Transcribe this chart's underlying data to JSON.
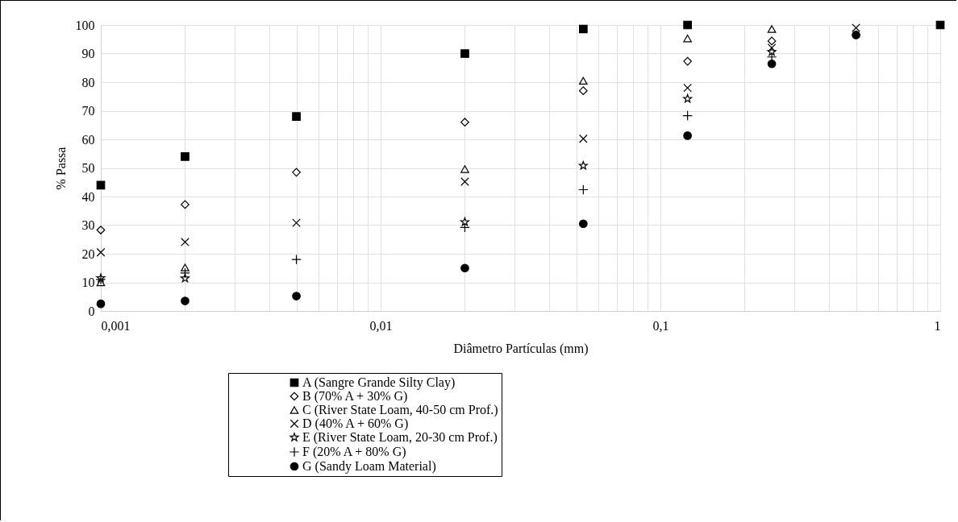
{
  "chart_data": {
    "type": "scatter",
    "xlabel": "Diâmetro  Partículas  (mm)",
    "ylabel": "% Passa",
    "log": "x",
    "grid": true,
    "legend": "bottom",
    "x": [
      0.001,
      0.002,
      0.005,
      0.02,
      0.053,
      0.125,
      0.25,
      0.5,
      1
    ],
    "xlim": [
      0.001,
      1
    ],
    "xticks": [
      {
        "value": 0.001,
        "label": "0,001"
      },
      {
        "value": 0.002,
        "label": null
      },
      {
        "value": 0.003,
        "label": null
      },
      {
        "value": 0.004,
        "label": null
      },
      {
        "value": 0.005,
        "label": null
      },
      {
        "value": 0.006,
        "label": null
      },
      {
        "value": 0.007,
        "label": null
      },
      {
        "value": 0.008,
        "label": null
      },
      {
        "value": 0.009,
        "label": null
      },
      {
        "value": 0.01,
        "label": "0,01"
      },
      {
        "value": 0.02,
        "label": null
      },
      {
        "value": 0.03,
        "label": null
      },
      {
        "value": 0.04,
        "label": null
      },
      {
        "value": 0.05,
        "label": null
      },
      {
        "value": 0.06,
        "label": null
      },
      {
        "value": 0.07,
        "label": null
      },
      {
        "value": 0.08,
        "label": null
      },
      {
        "value": 0.09,
        "label": null
      },
      {
        "value": 0.1,
        "label": "0,1"
      },
      {
        "value": 0.2,
        "label": null
      },
      {
        "value": 0.3,
        "label": null
      },
      {
        "value": 0.4,
        "label": null
      },
      {
        "value": 0.5,
        "label": null
      },
      {
        "value": 0.6,
        "label": null
      },
      {
        "value": 0.7,
        "label": null
      },
      {
        "value": 0.8,
        "label": null
      },
      {
        "value": 0.9,
        "label": null
      },
      1
    ],
    "ylim": [
      0,
      100
    ],
    "yticks": [
      0,
      10,
      20,
      30,
      40,
      50,
      60,
      70,
      80,
      90,
      100
    ],
    "series": [
      {
        "name": "A (Sangre Grande Silty Clay)",
        "color": "#000000",
        "marker": "square",
        "values": [
          44,
          54,
          68,
          90,
          98.6,
          100,
          null,
          null,
          100
        ]
      },
      {
        "name": "B (70% A + 30% G)",
        "color": "#000000",
        "marker": "diamond",
        "values": [
          28.3,
          37.2,
          48.5,
          66,
          77,
          87.3,
          94.4,
          null,
          null
        ]
      },
      {
        "name": "C (River State Loam, 40-50 cm Prof.)",
        "color": "#000000",
        "marker": "triangle",
        "values": [
          10,
          15.2,
          null,
          49.6,
          80.5,
          95.3,
          98.6,
          null,
          null
        ]
      },
      {
        "name": "D (40% A + 60% G)",
        "color": "#000000",
        "marker": "cross",
        "values": [
          20.5,
          24.1,
          30.8,
          45.2,
          60.2,
          78,
          92,
          99,
          null
        ]
      },
      {
        "name": "E (River State Loam, 20-30 cm Prof.)",
        "color": "#000000",
        "marker": "star",
        "values": [
          11.5,
          11.4,
          null,
          31.1,
          50.8,
          74.2,
          90.6,
          null,
          null
        ]
      },
      {
        "name": "F (20% A + 80% G)",
        "color": "#000000",
        "marker": "plus",
        "values": [
          11,
          13.3,
          18,
          29.2,
          42.4,
          68.3,
          88.8,
          null,
          null
        ]
      },
      {
        "name": "G (Sandy Loam Material)",
        "color": "#000000",
        "marker": "circle",
        "values": [
          2.5,
          3.5,
          5.2,
          15,
          30.5,
          61.3,
          86.4,
          96.5,
          null
        ]
      }
    ]
  }
}
